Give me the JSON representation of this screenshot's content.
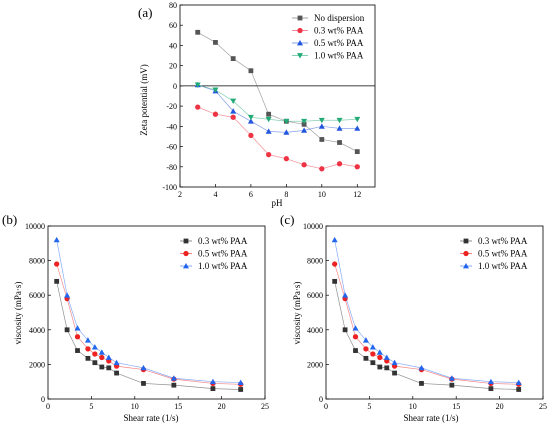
{
  "chart_data": [
    {
      "id": "a",
      "type": "line",
      "panel_label": "(a)",
      "xlabel": "pH",
      "ylabel": "Zeta potential (mV)",
      "xlim": [
        2,
        13
      ],
      "ylim": [
        -100,
        80
      ],
      "xticks": [
        2,
        4,
        6,
        8,
        10,
        12
      ],
      "yticks": [
        80,
        60,
        40,
        20,
        0,
        -20,
        -40,
        -60,
        -80,
        -100
      ],
      "zero_line": true,
      "legend_position": "top-right",
      "series": [
        {
          "name": "No dispersion",
          "color": "#555555",
          "marker": "square",
          "x": [
            3,
            4,
            5,
            6,
            7,
            8,
            9,
            10,
            11,
            12
          ],
          "y": [
            53,
            43,
            27,
            15,
            -28,
            -35,
            -38,
            -53,
            -56,
            -65
          ]
        },
        {
          "name": "0.3 wt% PAA",
          "color": "#ee3344",
          "marker": "circle",
          "x": [
            3,
            4,
            5,
            6,
            7,
            8,
            9,
            10,
            11,
            12
          ],
          "y": [
            -21,
            -28,
            -31,
            -49,
            -68,
            -72,
            -78,
            -82,
            -77,
            -80
          ]
        },
        {
          "name": "0.5 wt% PAA",
          "color": "#2255dd",
          "marker": "triangle-up",
          "x": [
            3,
            4,
            5,
            6,
            7,
            8,
            9,
            10,
            11,
            12
          ],
          "y": [
            1,
            -5,
            -25,
            -35,
            -45,
            -46,
            -44,
            -40,
            -42,
            -42
          ]
        },
        {
          "name": "1.0 wt% PAA",
          "color": "#22aa77",
          "marker": "triangle-down",
          "x": [
            3,
            4,
            5,
            6,
            7,
            8,
            9,
            10,
            11,
            12
          ],
          "y": [
            1,
            -4,
            -15,
            -31,
            -33,
            -35,
            -35,
            -34,
            -34,
            -33
          ]
        }
      ]
    },
    {
      "id": "b",
      "type": "line",
      "panel_label": "(b)",
      "xlabel": "Shear rate (1/s)",
      "ylabel": "viscosity (mPa·s)",
      "xlim": [
        0,
        25
      ],
      "ylim": [
        0,
        10000
      ],
      "xticks": [
        0,
        5,
        10,
        15,
        20,
        25
      ],
      "yticks": [
        0,
        2000,
        4000,
        6000,
        8000,
        10000
      ],
      "legend_position": "top-right",
      "series": [
        {
          "name": "0.3 wt% PAA",
          "color": "#333333",
          "marker": "square",
          "x": [
            1,
            2.2,
            3.4,
            4.6,
            5.4,
            6.2,
            7,
            7.9,
            11,
            14.5,
            19,
            22.2
          ],
          "y": [
            6800,
            4000,
            2800,
            2350,
            2100,
            1850,
            1800,
            1500,
            900,
            800,
            600,
            550
          ]
        },
        {
          "name": "0.5 wt% PAA",
          "color": "#ee2222",
          "marker": "circle",
          "x": [
            1,
            2.2,
            3.4,
            4.6,
            5.4,
            6.2,
            7,
            7.9,
            11,
            14.5,
            19,
            22.2
          ],
          "y": [
            7800,
            5800,
            3600,
            2900,
            2600,
            2400,
            2200,
            1900,
            1700,
            1150,
            900,
            850
          ]
        },
        {
          "name": "1.0 wt% PAA",
          "color": "#2266ee",
          "marker": "triangle-up",
          "x": [
            1,
            2.2,
            3.4,
            4.6,
            5.4,
            6.2,
            7,
            7.9,
            11,
            14.5,
            19,
            22.2
          ],
          "y": [
            9200,
            6000,
            4100,
            3400,
            3000,
            2700,
            2400,
            2100,
            1800,
            1200,
            1000,
            950
          ]
        }
      ]
    },
    {
      "id": "c",
      "type": "line",
      "panel_label": "(c)",
      "xlabel": "Shear rate (1/s)",
      "ylabel": "viscosity (mPa·s)",
      "xlim": [
        0,
        25
      ],
      "ylim": [
        0,
        10000
      ],
      "xticks": [
        0,
        5,
        10,
        15,
        20,
        25
      ],
      "yticks": [
        0,
        2000,
        4000,
        6000,
        8000,
        10000
      ],
      "legend_position": "top-right",
      "series": [
        {
          "name": "0.3 wt% PAA",
          "color": "#333333",
          "marker": "square",
          "x": [
            1,
            2.2,
            3.4,
            4.6,
            5.4,
            6.2,
            7,
            7.9,
            11,
            14.5,
            19,
            22.2
          ],
          "y": [
            6800,
            4000,
            2800,
            2350,
            2100,
            1850,
            1800,
            1500,
            900,
            800,
            600,
            550
          ]
        },
        {
          "name": "0.5 wt% PAA",
          "color": "#ee2222",
          "marker": "circle",
          "x": [
            1,
            2.2,
            3.4,
            4.6,
            5.4,
            6.2,
            7,
            7.9,
            11,
            14.5,
            19,
            22.2
          ],
          "y": [
            7800,
            5800,
            3600,
            2900,
            2600,
            2400,
            2200,
            1900,
            1700,
            1150,
            900,
            850
          ]
        },
        {
          "name": "1.0 wt% PAA",
          "color": "#2266ee",
          "marker": "triangle-up",
          "x": [
            1,
            2.2,
            3.4,
            4.6,
            5.4,
            6.2,
            7,
            7.9,
            11,
            14.5,
            19,
            22.2
          ],
          "y": [
            9200,
            6000,
            4100,
            3400,
            3000,
            2700,
            2400,
            2100,
            1800,
            1200,
            1000,
            950
          ]
        }
      ]
    }
  ]
}
